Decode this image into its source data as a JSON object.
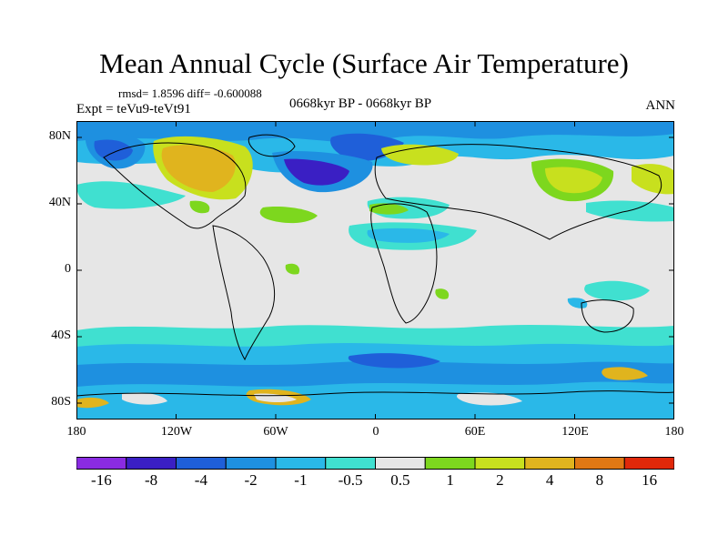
{
  "header": {
    "title": "Mean Annual Cycle (Surface Air Temperature)",
    "stats": "rmsd= 1.8596 diff= -0.600088",
    "period": "0668kyr BP - 0668kyr BP",
    "expt": "Expt = teVu9-teVt91",
    "season": "ANN"
  },
  "map": {
    "lat_labels": [
      "80N",
      "40N",
      "0",
      "40S",
      "80S"
    ],
    "lon_labels": [
      "180",
      "120W",
      "60W",
      "0",
      "60E",
      "120E",
      "180"
    ],
    "background_color": "#e6e6e6"
  },
  "colorbar": {
    "labels": [
      "-16",
      "-8",
      "-4",
      "-2",
      "-1",
      "-0.5",
      "0.5",
      "1",
      "2",
      "4",
      "8",
      "16"
    ],
    "colors": [
      "#8a2be2",
      "#3a1fc4",
      "#1f5fd9",
      "#1e90e0",
      "#2ab8e8",
      "#40e0d0",
      "#e6e6e6",
      "#7dd71e",
      "#c8e01e",
      "#e0b41e",
      "#e07814",
      "#e0280a"
    ]
  }
}
